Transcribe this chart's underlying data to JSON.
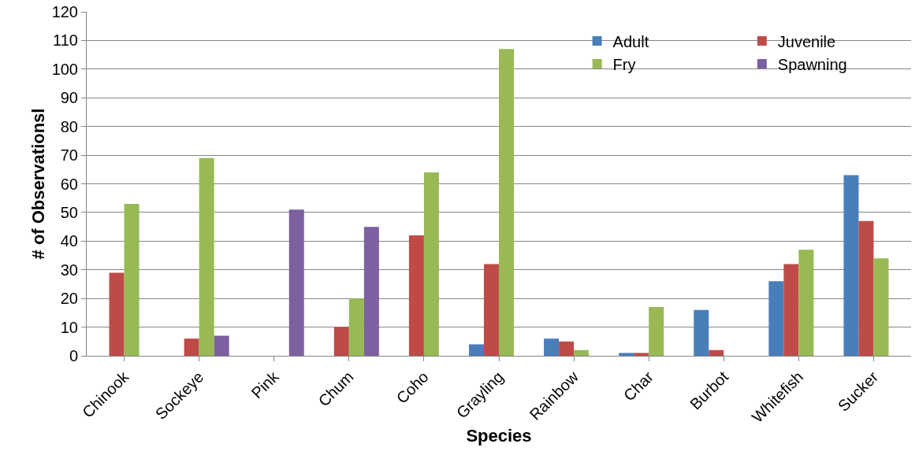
{
  "chart_data": {
    "type": "bar",
    "xlabel": "Species",
    "ylabel": "# of Observationsl",
    "categories": [
      "Chinook",
      "Sockeye",
      "Pink",
      "Chum",
      "Coho",
      "Grayling",
      "Rainbow",
      "Char",
      "Burbot",
      "Whitefish",
      "Sucker"
    ],
    "series": [
      {
        "name": "Adult",
        "color": "#4a7ebb",
        "values": [
          0,
          0,
          0,
          0,
          0,
          4,
          6,
          1,
          16,
          26,
          63
        ]
      },
      {
        "name": "Juvenile",
        "color": "#be4b48",
        "values": [
          29,
          6,
          0,
          10,
          42,
          32,
          5,
          1,
          2,
          32,
          47
        ]
      },
      {
        "name": "Fry",
        "color": "#98b954",
        "values": [
          53,
          69,
          0,
          20,
          64,
          107,
          2,
          17,
          0,
          37,
          34
        ]
      },
      {
        "name": "Spawning",
        "color": "#7d60a0",
        "values": [
          0,
          7,
          51,
          45,
          0,
          0,
          0,
          0,
          0,
          0,
          0
        ]
      }
    ],
    "ylim": [
      0,
      120
    ],
    "yticks": [
      0,
      10,
      20,
      30,
      40,
      50,
      60,
      70,
      80,
      90,
      100,
      110,
      120
    ],
    "grid": "y",
    "legend": "top right"
  }
}
